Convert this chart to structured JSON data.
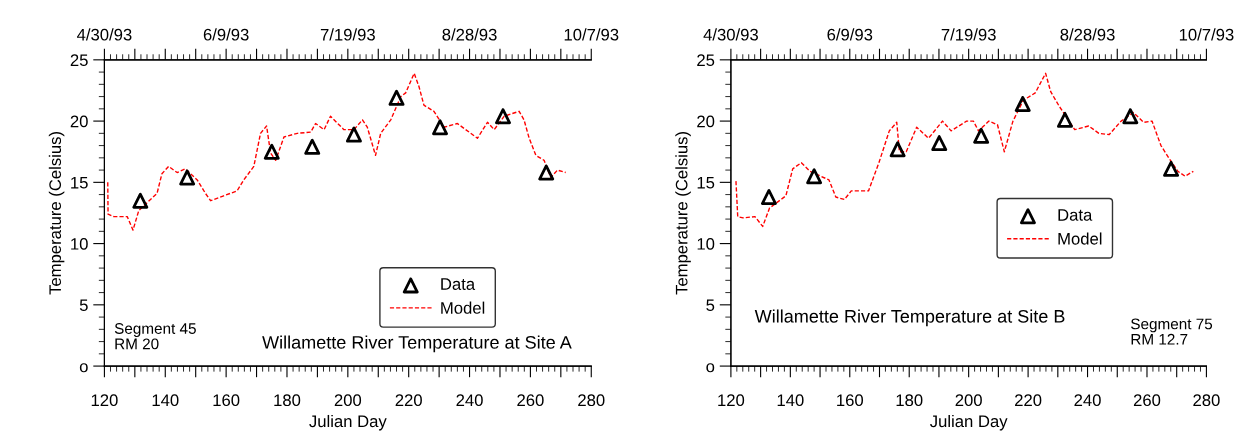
{
  "chart_data": [
    {
      "type": "line",
      "title": "Willamette River Temperature at Site A",
      "xlabel": "Julian Day",
      "ylabel": "Temperature (Celsius)",
      "annotations": [
        "Segment 45\nRM 20"
      ],
      "xlim": [
        120,
        280
      ],
      "xticks": [
        120,
        {
          "value": 130,
          "label": null
        },
        140,
        {
          "value": 150,
          "label": null
        },
        160,
        {
          "value": 170,
          "label": null
        },
        180,
        {
          "value": 190,
          "label": null
        },
        200,
        {
          "value": 210,
          "label": null
        },
        220,
        {
          "value": 230,
          "label": null
        },
        240,
        {
          "value": 250,
          "label": null
        },
        260,
        {
          "value": 270,
          "label": null
        },
        280
      ],
      "x2lim": [
        "1993-04-30",
        "1993-10-07"
      ],
      "x2ticks": [
        {
          "value": "1993-04-30",
          "label": "4/30/93"
        },
        {
          "value": "1993-05-10",
          "label": null
        },
        {
          "value": "1993-05-20",
          "label": null
        },
        {
          "value": "1993-05-30",
          "label": null
        },
        {
          "value": "1993-06-09",
          "label": "6/9/93"
        },
        {
          "value": "1993-06-19",
          "label": null
        },
        {
          "value": "1993-06-29",
          "label": null
        },
        {
          "value": "1993-07-09",
          "label": null
        },
        {
          "value": "1993-07-19",
          "label": "7/19/93"
        },
        {
          "value": "1993-07-29",
          "label": null
        },
        {
          "value": "1993-08-08",
          "label": null
        },
        {
          "value": "1993-08-18",
          "label": null
        },
        {
          "value": "1993-08-28",
          "label": "8/28/93"
        },
        {
          "value": "1993-09-07",
          "label": null
        },
        {
          "value": "1993-09-17",
          "label": null
        },
        {
          "value": "1993-09-27",
          "label": null
        },
        {
          "value": "1993-10-07",
          "label": "10/7/93"
        }
      ],
      "ylim": [
        0,
        25
      ],
      "yticks": [
        {
          "value": 0,
          "label": "o"
        },
        5,
        10,
        15,
        20,
        25
      ],
      "grid": false,
      "legend": "bottom right",
      "series": [
        {
          "name": "Data",
          "type": "scatter",
          "marker": "triangle",
          "color": "#000000",
          "x": [
            131.8,
            147.2,
            175.0,
            188.3,
            202.0,
            216.0,
            230.3,
            251.0,
            265.2
          ],
          "values": [
            13.5,
            15.4,
            17.5,
            17.9,
            18.9,
            21.9,
            19.5,
            20.4,
            15.8
          ]
        },
        {
          "name": "Model",
          "line_style": "dashed",
          "marker": "none",
          "color": "#ff0000",
          "x": [
            121.1,
            121.2,
            123.1,
            127.5,
            129.4,
            131.3,
            137.3,
            138.9,
            141.1,
            143.9,
            146.6,
            150.5,
            153.2,
            154.9,
            159.2,
            163.6,
            165.8,
            169.1,
            171.3,
            173.3,
            174.6,
            176.3,
            179.0,
            183.4,
            187.8,
            189.4,
            192.2,
            194.3,
            198.7,
            202.0,
            204.8,
            206.4,
            209.1,
            210.8,
            214.1,
            217.4,
            219.0,
            221.8,
            223.4,
            225.0,
            228.3,
            231.6,
            236.0,
            242.6,
            245.9,
            248.1,
            251.4,
            256.3,
            257.9,
            259.6,
            261.8,
            264.5,
            266.7,
            268.9,
            271.6
          ],
          "values": [
            15.0,
            12.4,
            12.2,
            12.2,
            11.1,
            12.7,
            14.1,
            15.7,
            16.3,
            15.8,
            16.1,
            15.2,
            14.1,
            13.5,
            13.9,
            14.3,
            15.2,
            16.3,
            19.0,
            19.6,
            17.4,
            16.8,
            18.7,
            19.0,
            19.1,
            19.8,
            19.3,
            20.4,
            19.3,
            19.3,
            20.1,
            19.5,
            17.2,
            19.0,
            20.1,
            22.0,
            22.3,
            23.9,
            22.8,
            21.3,
            20.8,
            19.5,
            19.8,
            18.6,
            19.9,
            19.3,
            20.4,
            20.8,
            20.1,
            18.6,
            17.2,
            16.8,
            15.4,
            16.0,
            15.8
          ]
        }
      ]
    },
    {
      "type": "line",
      "title": "Willamette River Temperature at Site B",
      "xlabel": "Julian Day",
      "ylabel": "Temperature (Celsius)",
      "annotations": [
        "Segment 75\nRM 12.7"
      ],
      "xlim": [
        120,
        280
      ],
      "xticks": [
        120,
        {
          "value": 130,
          "label": null
        },
        140,
        {
          "value": 150,
          "label": null
        },
        160,
        {
          "value": 170,
          "label": null
        },
        180,
        {
          "value": 190,
          "label": null
        },
        200,
        {
          "value": 210,
          "label": null
        },
        220,
        {
          "value": 230,
          "label": null
        },
        240,
        {
          "value": 250,
          "label": null
        },
        260,
        {
          "value": 270,
          "label": null
        },
        280
      ],
      "x2lim": [
        "1993-04-30",
        "1993-10-07"
      ],
      "x2ticks": [
        {
          "value": "1993-04-30",
          "label": "4/30/93"
        },
        {
          "value": "1993-05-10",
          "label": null
        },
        {
          "value": "1993-05-20",
          "label": null
        },
        {
          "value": "1993-05-30",
          "label": null
        },
        {
          "value": "1993-06-09",
          "label": "6/9/93"
        },
        {
          "value": "1993-06-19",
          "label": null
        },
        {
          "value": "1993-06-29",
          "label": null
        },
        {
          "value": "1993-07-09",
          "label": null
        },
        {
          "value": "1993-07-19",
          "label": "7/19/93"
        },
        {
          "value": "1993-07-29",
          "label": null
        },
        {
          "value": "1993-08-08",
          "label": null
        },
        {
          "value": "1993-08-18",
          "label": null
        },
        {
          "value": "1993-08-28",
          "label": "8/28/93"
        },
        {
          "value": "1993-09-07",
          "label": null
        },
        {
          "value": "1993-09-17",
          "label": null
        },
        {
          "value": "1993-09-27",
          "label": null
        },
        {
          "value": "1993-10-07",
          "label": "10/7/93"
        }
      ],
      "ylim": [
        0,
        25
      ],
      "yticks": [
        {
          "value": 0,
          "label": "o"
        },
        5,
        10,
        15,
        20,
        25
      ],
      "grid": false,
      "legend": "right",
      "series": [
        {
          "name": "Data",
          "type": "scatter",
          "marker": "triangle",
          "color": "#000000",
          "x": [
            132.8,
            148.0,
            176.1,
            190.1,
            204.2,
            218.2,
            232.4,
            254.4,
            268.1
          ],
          "values": [
            13.8,
            15.5,
            17.7,
            18.2,
            18.8,
            21.4,
            20.1,
            20.4,
            16.1
          ]
        },
        {
          "name": "Model",
          "line_style": "dashed",
          "marker": "none",
          "color": "#ff0000",
          "x": [
            121.7,
            122.3,
            124.1,
            128.1,
            130.7,
            133.0,
            138.5,
            140.8,
            143.7,
            146.6,
            153.0,
            155.3,
            158.2,
            160.5,
            166.3,
            169.8,
            173.3,
            175.8,
            176.7,
            179.0,
            182.5,
            186.5,
            191.2,
            194.1,
            199.3,
            201.6,
            203.3,
            206.8,
            209.7,
            212.0,
            214.9,
            218.4,
            222.4,
            225.9,
            227.6,
            230.5,
            235.7,
            240.4,
            243.8,
            247.3,
            251.3,
            255.4,
            258.9,
            261.7,
            264.7,
            267.6,
            270.4,
            272.8,
            275.6
          ],
          "values": [
            15.1,
            12.2,
            12.1,
            12.2,
            11.4,
            12.9,
            13.9,
            16.1,
            16.6,
            15.9,
            15.2,
            13.8,
            13.6,
            14.3,
            14.3,
            16.6,
            19.2,
            19.9,
            17.5,
            17.5,
            19.5,
            18.6,
            20.0,
            19.2,
            20.0,
            20.0,
            19.2,
            20.0,
            19.7,
            17.5,
            20.0,
            21.7,
            22.3,
            23.9,
            22.4,
            21.2,
            19.3,
            19.6,
            19.0,
            18.9,
            20.0,
            20.7,
            19.9,
            20.0,
            18.0,
            16.9,
            15.9,
            15.5,
            15.9
          ]
        }
      ]
    }
  ]
}
